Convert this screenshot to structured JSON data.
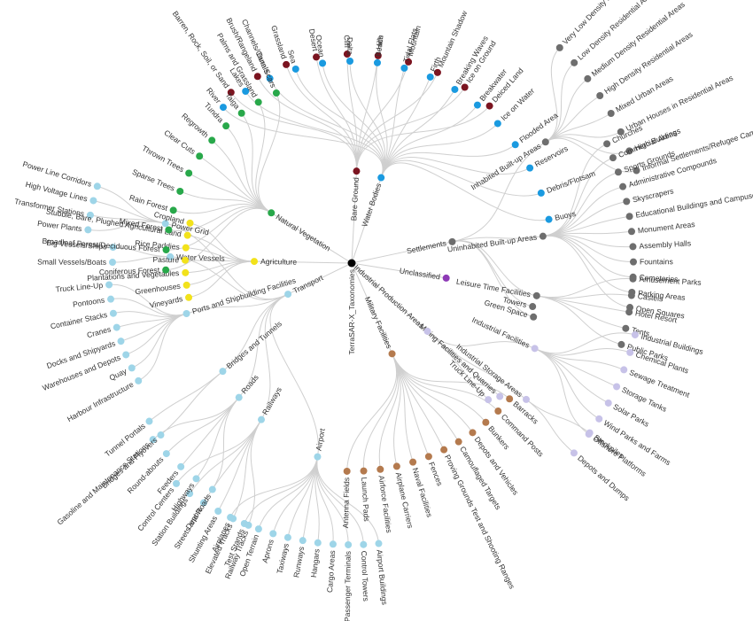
{
  "colors": {
    "root": "#000000",
    "link": "#cfcfcf",
    "text": "#333333",
    "Bare Ground": "#7b1420",
    "Water Bodies": "#1a9ae0",
    "Natural Vegetation": "#28a84a",
    "Agriculture": "#f2e21b",
    "Settlements": "#6e6e6e",
    "Unclassified": "#8e3ab6",
    "Industrial Production Areas": "#c7c2e8",
    "Military Facilities": "#b47a4e",
    "Transport": "#9ed5e8"
  },
  "tree": {
    "name": "TerraSAR-X_Taxonomies",
    "children": [
      {
        "name": "Bare Ground",
        "children": [
          {
            "name": "Barren, Rock, Soil, or Sand"
          },
          {
            "name": "Brush/Rangeland"
          },
          {
            "name": "Grassland"
          },
          {
            "name": "Desert"
          },
          {
            "name": "Cliff"
          },
          {
            "name": "Hills"
          },
          {
            "name": "Mountain"
          },
          {
            "name": "Mountain Shadow"
          },
          {
            "name": "Ice on Ground"
          },
          {
            "name": "Deiced Land"
          }
        ]
      },
      {
        "name": "Water Bodies",
        "children": [
          {
            "name": "River"
          },
          {
            "name": "Lakes"
          },
          {
            "name": "Channels/Canals"
          },
          {
            "name": "Sea"
          },
          {
            "name": "Ocean"
          },
          {
            "name": "Delta"
          },
          {
            "name": "Beach"
          },
          {
            "name": "Tidal Flats"
          },
          {
            "name": "Firth"
          },
          {
            "name": "Breaking Waves"
          },
          {
            "name": "Breakwater"
          },
          {
            "name": "Ice on Water"
          },
          {
            "name": "Flooded Area"
          },
          {
            "name": "Reservoirs"
          },
          {
            "name": "Debris/Flotsam"
          },
          {
            "name": "Buoys"
          }
        ]
      },
      {
        "name": "Settlements",
        "children": [
          {
            "name": "Inhabited Built-up Areas",
            "children": [
              {
                "name": "Very Low Density Residential Areas"
              },
              {
                "name": "Low Density Residential Areas"
              },
              {
                "name": "Medium Density Residential Areas"
              },
              {
                "name": "High Density Residential Areas"
              },
              {
                "name": "Mixed Urban Areas"
              },
              {
                "name": "Urban Houses in Residential Areas"
              },
              {
                "name": "High Buildings"
              },
              {
                "name": "Informal Settlements/Refugee Camps"
              }
            ]
          },
          {
            "name": "Uninhabited Built-up Areas",
            "children": [
              {
                "name": "Churches"
              },
              {
                "name": "Commercial Areas"
              },
              {
                "name": "Sports Grounds"
              },
              {
                "name": "Administrative Compounds"
              },
              {
                "name": "Skyscrapers"
              },
              {
                "name": "Educational Buildings and Campuses"
              },
              {
                "name": "Monument Areas"
              },
              {
                "name": "Assembly Halls"
              },
              {
                "name": "Fountains"
              },
              {
                "name": "Cemeteries"
              },
              {
                "name": "Parking Areas"
              },
              {
                "name": "Open Squares"
              }
            ]
          },
          {
            "name": "Leisure Time Facilities",
            "children": [
              {
                "name": "Amusement Parks"
              },
              {
                "name": "Castels"
              },
              {
                "name": "Hotel Resort"
              },
              {
                "name": "Tents"
              },
              {
                "name": "Public Parks"
              }
            ]
          },
          {
            "name": "Towers"
          },
          {
            "name": "Green Space"
          }
        ]
      },
      {
        "name": "Unclassified"
      },
      {
        "name": "Industrial Production Areas",
        "children": [
          {
            "name": "Industrial Facilities",
            "children": [
              {
                "name": "Industrial Buildings"
              },
              {
                "name": "Chemical Plants"
              },
              {
                "name": "Sewage Treatment"
              },
              {
                "name": "Storage Tanks"
              },
              {
                "name": "Solar Parks"
              },
              {
                "name": "Wind Parks and Farms"
              },
              {
                "name": "Offshore Platforms"
              }
            ]
          },
          {
            "name": "Industrial Storage Areas",
            "children": [
              {
                "name": "Stockpiles"
              },
              {
                "name": "Depots and Dumps"
              }
            ]
          },
          {
            "name": "Mining Facilities and Quarries"
          },
          {
            "name": "Truck Line-Up"
          }
        ]
      },
      {
        "name": "Military Facilities",
        "children": [
          {
            "name": "Barracks"
          },
          {
            "name": "Command Posts"
          },
          {
            "name": "Bunkers"
          },
          {
            "name": "Depots and Vehicles"
          },
          {
            "name": "Camouflaged Targets"
          },
          {
            "name": "Proving Grounds Test and Shooting Ranges"
          },
          {
            "name": "Fences"
          },
          {
            "name": "Naval Facilities"
          },
          {
            "name": "Airplane Carriers"
          },
          {
            "name": "Airforce Facilities"
          },
          {
            "name": "Launch Pads"
          },
          {
            "name": "Antenna Fields"
          }
        ]
      },
      {
        "name": "Transport",
        "children": [
          {
            "name": "Airport",
            "children": [
              {
                "name": "Airport Buildings"
              },
              {
                "name": "Control Towers"
              },
              {
                "name": "Passenger Terminals"
              },
              {
                "name": "Cargo Areas"
              },
              {
                "name": "Hangars"
              },
              {
                "name": "Runways"
              },
              {
                "name": "Taxiways"
              },
              {
                "name": "Aprons"
              },
              {
                "name": "Open Terrain"
              },
              {
                "name": "Test Stands"
              },
              {
                "name": "Airplanes"
              }
            ]
          },
          {
            "name": "Railways",
            "children": [
              {
                "name": "Railway Tracks"
              },
              {
                "name": "Elevated Tracks"
              },
              {
                "name": "Shunting Areas"
              },
              {
                "name": "Depots"
              },
              {
                "name": "Station Buildings"
              },
              {
                "name": "Control Centers"
              }
            ]
          },
          {
            "name": "Roads",
            "children": [
              {
                "name": "Streets and Roads"
              },
              {
                "name": "Highways"
              },
              {
                "name": "Feeders"
              },
              {
                "name": "Round-abouts"
              },
              {
                "name": "Gasoline and Maintenance Stations"
              }
            ]
          },
          {
            "name": "Bridges and Tunnels",
            "children": [
              {
                "name": "Bridges and Flyovers"
              },
              {
                "name": "Tunnel Portals"
              }
            ]
          },
          {
            "name": "Ports and Shipbuilding Facilities",
            "children": [
              {
                "name": "Harbour Infrastructure"
              },
              {
                "name": "Quay"
              },
              {
                "name": "Warehouses and Depots"
              },
              {
                "name": "Docks and Shipyards"
              },
              {
                "name": "Cranes"
              },
              {
                "name": "Container Stacks"
              },
              {
                "name": "Pontoons"
              },
              {
                "name": "Truck Line-Up"
              }
            ]
          },
          {
            "name": "Water Vessels",
            "children": [
              {
                "name": "Small Vessels/Boats"
              },
              {
                "name": "Big Vessels/Ships"
              }
            ]
          },
          {
            "name": "Power Grid",
            "children": [
              {
                "name": "Power Plants"
              },
              {
                "name": "Transformer Stations"
              },
              {
                "name": "High Voltage Lines"
              },
              {
                "name": "Power Line Corridors"
              }
            ]
          }
        ]
      },
      {
        "name": "Agriculture",
        "children": [
          {
            "name": "Vineyards"
          },
          {
            "name": "Greenhouses"
          },
          {
            "name": "Plantations and Vegetables"
          },
          {
            "name": "Pasture"
          },
          {
            "name": "Rice Paddies"
          },
          {
            "name": "Stubble, Bare, Plughed Agricultural Land"
          },
          {
            "name": "Cropland"
          }
        ]
      },
      {
        "name": "Natural Vegetation",
        "children": [
          {
            "name": "Coniferous Forest"
          },
          {
            "name": "Broadleaf Forest/Deciduous Forest"
          },
          {
            "name": "Mixed Forest"
          },
          {
            "name": "Rain Forest"
          },
          {
            "name": "Sparse Trees"
          },
          {
            "name": "Thrown Trees"
          },
          {
            "name": "Clear Cuts"
          },
          {
            "name": "Regrowth"
          },
          {
            "name": "Tundra"
          },
          {
            "name": "Taiga"
          },
          {
            "name": "Palms and Grassland"
          },
          {
            "name": "Burn Scars"
          }
        ]
      }
    ]
  }
}
